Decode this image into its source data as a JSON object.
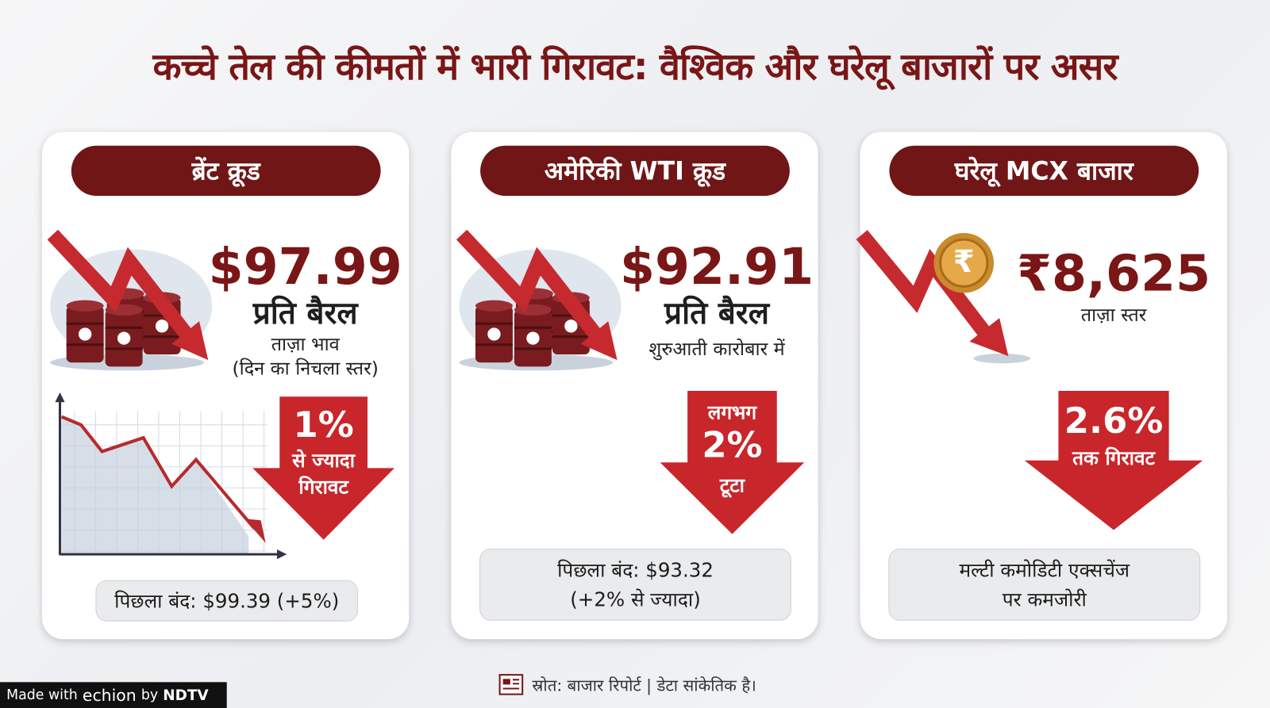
{
  "title": "कच्चे तेल की कीमतों में भारी गिरावट: वैश्विक और घरेलू बाजारों पर असर",
  "cards": [
    {
      "header": "ब्रेंट क्रूड",
      "price": "$97.99",
      "unit": "प्रति बैरल",
      "notes": [
        "ताज़ा भाव",
        "(दिन का निचला स्तर)"
      ],
      "badge": [
        "1%",
        "से ज्यादा",
        "गिरावट"
      ],
      "footer": [
        "पिछला बंद: $99.39 (+5%)"
      ]
    },
    {
      "header": "अमेरिकी WTI क्रूड",
      "price": "$92.91",
      "unit": "प्रति बैरल",
      "notes": [
        "शुरुआती कारोबार में"
      ],
      "badge": [
        "लगभग",
        "2%",
        "टूटा"
      ],
      "footer": [
        "पिछला बंद: $93.32",
        "(+2% से ज्यादा)"
      ]
    },
    {
      "header": "घरेलू MCX बाजार",
      "icon": "₹",
      "price": "₹8,625",
      "notes": [
        "ताज़ा स्तर"
      ],
      "badge": [
        "2.6%",
        "तक गिरावट"
      ],
      "footer": [
        "मल्टी कमोडिटी एक्सचेंज",
        "पर कमजोरी"
      ]
    }
  ],
  "source": "स्रोत: बाजार रिपोर्ट | डेटा सांकेतिक है।",
  "watermark": {
    "prefix": "Made with",
    "brand": "echion",
    "by": "by",
    "owner": "NDTV"
  }
}
